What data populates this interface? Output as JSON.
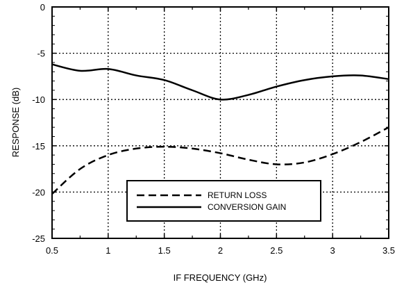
{
  "chart_data": {
    "type": "line",
    "title": "",
    "xlabel": "IF FREQUENCY (GHz)",
    "ylabel": "RESPONSE (dB)",
    "xlim": [
      0.5,
      3.5
    ],
    "ylim": [
      -25,
      0
    ],
    "xticks": [
      0.5,
      1,
      1.5,
      2,
      2.5,
      3,
      3.5
    ],
    "xtick_labels": [
      "0.5",
      "1",
      "1.5",
      "2",
      "2.5",
      "3",
      "3.5"
    ],
    "yticks": [
      0,
      -5,
      -10,
      -15,
      -20,
      -25
    ],
    "ytick_labels": [
      "0",
      "-5",
      "-10",
      "-15",
      "-20",
      "-25"
    ],
    "grid": true,
    "legend_position": "lower-center",
    "series": [
      {
        "name": "RETURN LOSS",
        "style": "dashed",
        "x": [
          0.5,
          0.75,
          1.0,
          1.25,
          1.5,
          1.75,
          2.0,
          2.25,
          2.5,
          2.75,
          3.0,
          3.25,
          3.5
        ],
        "y": [
          -20.2,
          -17.5,
          -16.0,
          -15.3,
          -15.1,
          -15.3,
          -15.8,
          -16.5,
          -17.0,
          -16.8,
          -15.9,
          -14.6,
          -13.0
        ]
      },
      {
        "name": "CONVERSION GAIN",
        "style": "solid",
        "x": [
          0.5,
          0.75,
          1.0,
          1.25,
          1.5,
          1.75,
          2.0,
          2.25,
          2.5,
          2.75,
          3.0,
          3.25,
          3.5
        ],
        "y": [
          -6.2,
          -6.9,
          -6.7,
          -7.4,
          -7.9,
          -9.0,
          -10.0,
          -9.5,
          -8.6,
          -7.9,
          -7.5,
          -7.4,
          -7.8
        ]
      }
    ]
  }
}
